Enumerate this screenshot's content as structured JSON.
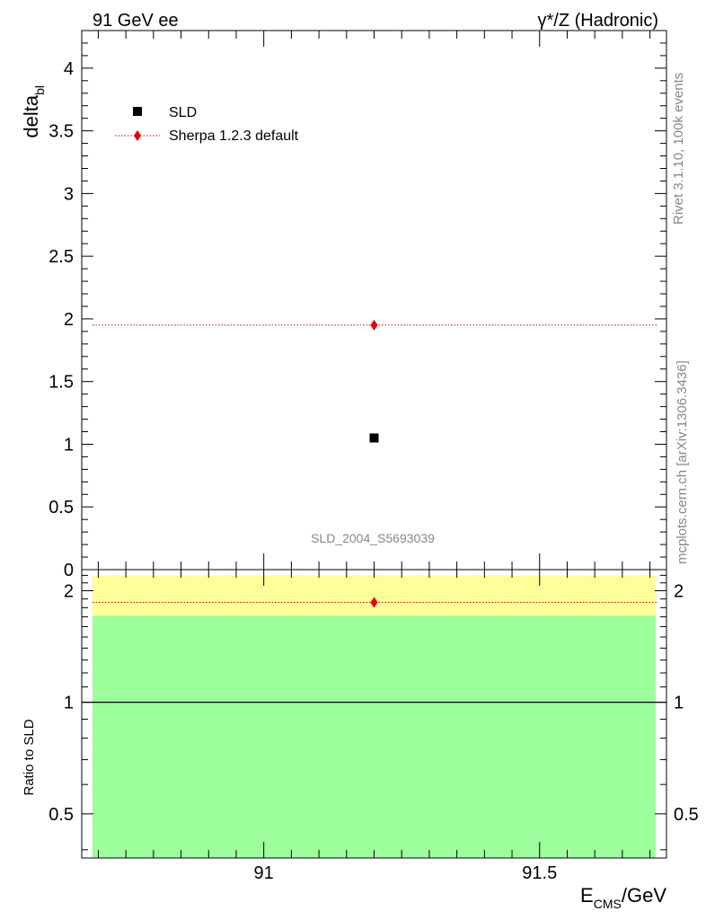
{
  "header": {
    "left": "91 GeV ee",
    "right": "γ*/Z (Hadronic)"
  },
  "side_labels": {
    "rivet": "Rivet 3.1.10,  100k events",
    "mcplots": "mcplots.cern.ch [arXiv:1306.3436]"
  },
  "watermark": "SLD_2004_S5693039",
  "colors": {
    "data_marker": "#000000",
    "mc_line": "#ee0000",
    "band_green": "#9dff9b",
    "band_yellow": "#ffff99"
  },
  "chart_data": [
    {
      "type": "scatter",
      "panel": "main",
      "ylabel": "delta",
      "ylabel_sub": "bl",
      "ylim": [
        0,
        4.3
      ],
      "xlim": [
        90.67,
        91.73
      ],
      "yticks": [
        "0",
        "0.5",
        "1",
        "1.5",
        "2",
        "2.5",
        "3",
        "3.5",
        "4"
      ],
      "legend_position": "top-left",
      "series": [
        {
          "name": "SLD",
          "x": [
            91.2
          ],
          "y": [
            1.05
          ],
          "marker": "square",
          "color": "#000000"
        },
        {
          "name": "Sherpa 1.2.3 default",
          "x": [
            91.2
          ],
          "y": [
            1.95
          ],
          "marker": "diamond",
          "color": "#ee0000",
          "line": "dotted",
          "line_range": [
            90.67,
            91.73
          ]
        }
      ]
    },
    {
      "type": "scatter",
      "panel": "ratio",
      "ylabel": "Ratio to SLD",
      "xlabel": "E",
      "xlabel_sub": "CMS",
      "xlabel_unit": "/GeV",
      "ylim": [
        0.38,
        2.28
      ],
      "xticks": [
        "91",
        "91.5"
      ],
      "yticks": [
        "0.5",
        "1",
        "2"
      ],
      "reference_line": 1,
      "bands": [
        {
          "color": "#ffff99",
          "range": [
            0.38,
            2.2
          ]
        },
        {
          "color": "#9dff9b",
          "range": [
            0.38,
            1.71
          ]
        }
      ],
      "series": [
        {
          "name": "Sherpa 1.2.3 default",
          "x": [
            91.2
          ],
          "y": [
            1.86
          ],
          "marker": "diamond",
          "color": "#ee0000",
          "line": "dotted"
        }
      ]
    }
  ]
}
